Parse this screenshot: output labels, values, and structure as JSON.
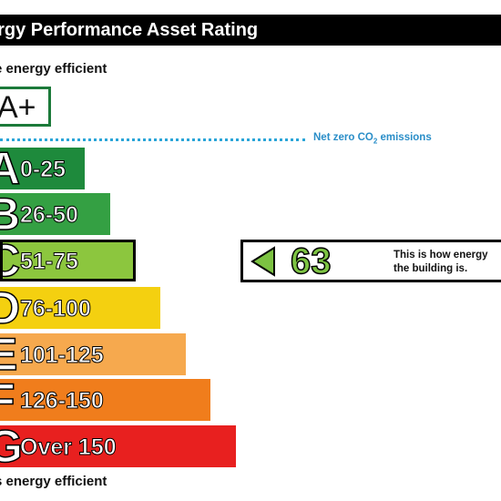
{
  "header": {
    "title": "ergy Performance Asset Rating"
  },
  "labels": {
    "top": "e energy efficient",
    "bottom": "s energy efficient",
    "aplus": "A+",
    "netzero_text": "Net zero CO",
    "netzero_sub": "2",
    "netzero_tail": " emissions"
  },
  "bands": [
    {
      "letter": "A",
      "range": "0-25",
      "color": "#1e8a3c"
    },
    {
      "letter": "B",
      "range": "26-50",
      "color": "#34a043"
    },
    {
      "letter": "C",
      "range": "51-75",
      "color": "#8cc63e"
    },
    {
      "letter": "D",
      "range": "76-100",
      "color": "#f4d010"
    },
    {
      "letter": "E",
      "range": "101-125",
      "color": "#f6a94e"
    },
    {
      "letter": "F",
      "range": "126-150",
      "color": "#f07d1c"
    },
    {
      "letter": "G",
      "range": "Over 150",
      "color": "#e8201f"
    }
  ],
  "current_band": "C",
  "indicator": {
    "score": "63",
    "message_line1": "This is how energy",
    "message_line2": "the building is.",
    "arrow_color": "#7cc242"
  }
}
